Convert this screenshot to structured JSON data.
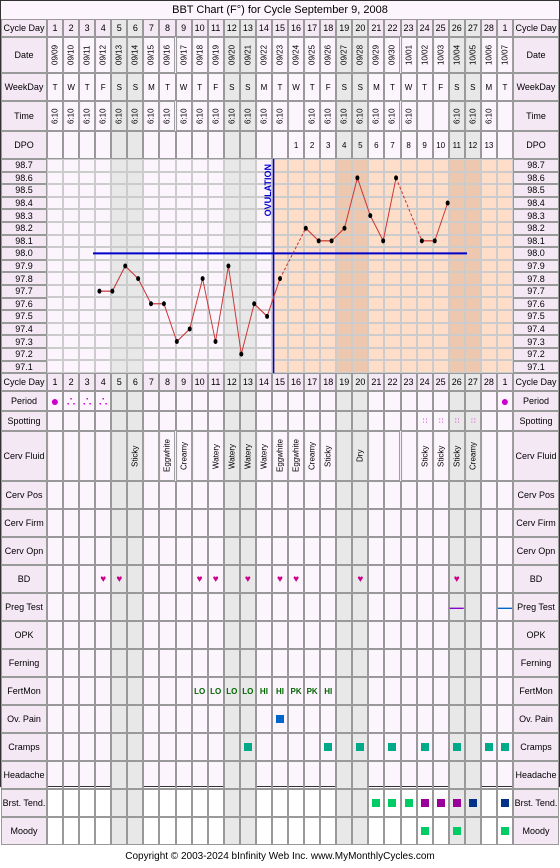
{
  "title": "BBT Chart (F°) for Cycle September 9, 2008",
  "footer": "Copyright © 2003-2024 bInfinity Web Inc.    www.MyMonthlyCycles.com",
  "labels": {
    "cycleDay": "Cycle Day",
    "date": "Date",
    "weekday": "WeekDay",
    "time": "Time",
    "dpo": "DPO",
    "period": "Period",
    "spotting": "Spotting",
    "cervFluid": "Cerv Fluid",
    "cervPos": "Cerv Pos",
    "cervFirm": "Cerv Firm",
    "cervOpn": "Cerv Opn",
    "bd": "BD",
    "pregTest": "Preg Test",
    "opk": "OPK",
    "ferning": "Ferning",
    "fertMon": "FertMon",
    "ovPain": "Ov. Pain",
    "cramps": "Cramps",
    "headache": "Headache",
    "brstTend": "Brst. Tend.",
    "moody": "Moody",
    "ovulation": "OVULATION"
  },
  "cycleDays": [
    1,
    2,
    3,
    4,
    5,
    6,
    7,
    8,
    9,
    10,
    11,
    12,
    13,
    14,
    15,
    16,
    17,
    18,
    19,
    20,
    21,
    22,
    23,
    24,
    25,
    26,
    27,
    28,
    1
  ],
  "dates": [
    "09/09",
    "09/10",
    "09/11",
    "09/12",
    "09/13",
    "09/14",
    "09/15",
    "09/16",
    "09/17",
    "09/18",
    "09/19",
    "09/20",
    "09/21",
    "09/22",
    "09/23",
    "09/24",
    "09/25",
    "09/26",
    "09/27",
    "09/28",
    "09/29",
    "09/30",
    "10/01",
    "10/02",
    "10/03",
    "10/04",
    "10/05",
    "10/06",
    "10/07"
  ],
  "weekdays": [
    "T",
    "W",
    "T",
    "F",
    "S",
    "S",
    "M",
    "T",
    "W",
    "T",
    "F",
    "S",
    "S",
    "M",
    "T",
    "W",
    "T",
    "F",
    "S",
    "S",
    "M",
    "T",
    "W",
    "T",
    "F",
    "S",
    "S",
    "M",
    "T"
  ],
  "weekendIdx": [
    4,
    5,
    11,
    12,
    18,
    19,
    25,
    26
  ],
  "times": [
    "6:10",
    "6:10",
    "6:10",
    "6:10",
    "6:10",
    "6:10",
    "6:10",
    "6:10",
    "6:10",
    "6:10",
    "6:10",
    "6:10",
    "6:10",
    "6:10",
    "6:10",
    "",
    "6:10",
    "6:10",
    "6:10",
    "6:10",
    "6:10",
    "6:10",
    "6:10",
    "",
    "",
    "6:10",
    "6:10",
    "6:10",
    ""
  ],
  "dpo": [
    "",
    "",
    "",
    "",
    "",
    "",
    "",
    "",
    "",
    "",
    "",
    "",
    "",
    "",
    "",
    "1",
    "2",
    "3",
    "4",
    "5",
    "6",
    "7",
    "8",
    "9",
    "10",
    "11",
    "12",
    "13",
    ""
  ],
  "yAxis": [
    "98.7",
    "98.6",
    "98.5",
    "98.4",
    "98.3",
    "98.2",
    "98.1",
    "98.0",
    "97.9",
    "97.8",
    "97.7",
    "97.6",
    "97.5",
    "97.4",
    "97.3",
    "97.2",
    "97.1"
  ],
  "temps": [
    97.7,
    97.7,
    97.9,
    97.8,
    97.6,
    97.6,
    97.3,
    97.4,
    97.8,
    97.3,
    97.9,
    97.2,
    97.6,
    97.5,
    97.8,
    null,
    98.2,
    98.1,
    98.1,
    98.2,
    98.6,
    98.3,
    98.1,
    98.6,
    null,
    98.1,
    98.1,
    98.4,
    null
  ],
  "ovulationDay": 15,
  "coverline": 98.0,
  "chart": {
    "line_color": "#cc3333",
    "dashed_color": "#cc3333",
    "ov_line_color": "#0000cc",
    "cover_color": "#0000cc",
    "luteal_bg": "rgba(255,200,150,0.5)"
  },
  "period": [
    "●",
    "∴",
    "∴",
    "∴",
    "",
    "",
    "",
    "",
    "",
    "",
    "",
    "",
    "",
    "",
    "",
    "",
    "",
    "",
    "",
    "",
    "",
    "",
    "",
    "",
    "",
    "",
    "",
    "",
    "●"
  ],
  "spotting": [
    "",
    "",
    "",
    "",
    "",
    "",
    "",
    "",
    "",
    "",
    "",
    "",
    "",
    "",
    "",
    "",
    "",
    "",
    "",
    "",
    "",
    "",
    "",
    "∷",
    "∷",
    "∷",
    "∷",
    "",
    ""
  ],
  "cervFluid": [
    "",
    "",
    "",
    "",
    "",
    "Sticky",
    "",
    "Eggwhite",
    "Creamy",
    "",
    "Watery",
    "Watery",
    "Watery",
    "Watery",
    "Eggwhite",
    "Eggwhite",
    "Creamy",
    "Sticky",
    "",
    "Dry",
    "",
    "",
    "",
    "Sticky",
    "Sticky",
    "Sticky",
    "Creamy",
    "",
    ""
  ],
  "bd": [
    "",
    "",
    "",
    "♥",
    "♥",
    "",
    "",
    "",
    "",
    "♥",
    "♥",
    "",
    "♥",
    "",
    "♥",
    "♥",
    "",
    "",
    "",
    "♥",
    "",
    "",
    "",
    "",
    "",
    "♥",
    "",
    "",
    ""
  ],
  "pregTest": [
    "",
    "",
    "",
    "",
    "",
    "",
    "",
    "",
    "",
    "",
    "",
    "",
    "",
    "",
    "",
    "",
    "",
    "",
    "",
    "",
    "",
    "",
    "",
    "",
    "",
    "—",
    "",
    "",
    "—"
  ],
  "fertMon": [
    "",
    "",
    "",
    "",
    "",
    "",
    "",
    "",
    "",
    "LO",
    "LO",
    "LO",
    "LO",
    "HI",
    "HI",
    "PK",
    "PK",
    "HI",
    "",
    "",
    "",
    "",
    "",
    "",
    "",
    "",
    "",
    "",
    ""
  ],
  "ovPain": [
    "",
    "",
    "",
    "",
    "",
    "",
    "",
    "",
    "",
    "",
    "",
    "",
    "",
    "",
    "■",
    "",
    "",
    "",
    "",
    "",
    "",
    "",
    "",
    "",
    "",
    "",
    "",
    "",
    ""
  ],
  "cramps": [
    "",
    "",
    "",
    "",
    "",
    "",
    "",
    "",
    "",
    "",
    "",
    "",
    "■",
    "",
    "",
    "",
    "",
    "■",
    "",
    "■",
    "",
    "■",
    "",
    "■",
    "",
    "■",
    "",
    "■",
    "■"
  ],
  "brstTend": [
    "",
    "",
    "",
    "",
    "",
    "",
    "",
    "",
    "",
    "",
    "",
    "",
    "",
    "",
    "",
    "",
    "",
    "",
    "",
    "",
    "■",
    "■",
    "■",
    "■",
    "■",
    "■",
    "■",
    "",
    "■"
  ],
  "moody": [
    "",
    "",
    "",
    "",
    "",
    "",
    "",
    "",
    "",
    "",
    "",
    "",
    "",
    "",
    "",
    "",
    "",
    "",
    "",
    "",
    "",
    "",
    "",
    "■",
    "",
    "■",
    "",
    "",
    "■"
  ]
}
